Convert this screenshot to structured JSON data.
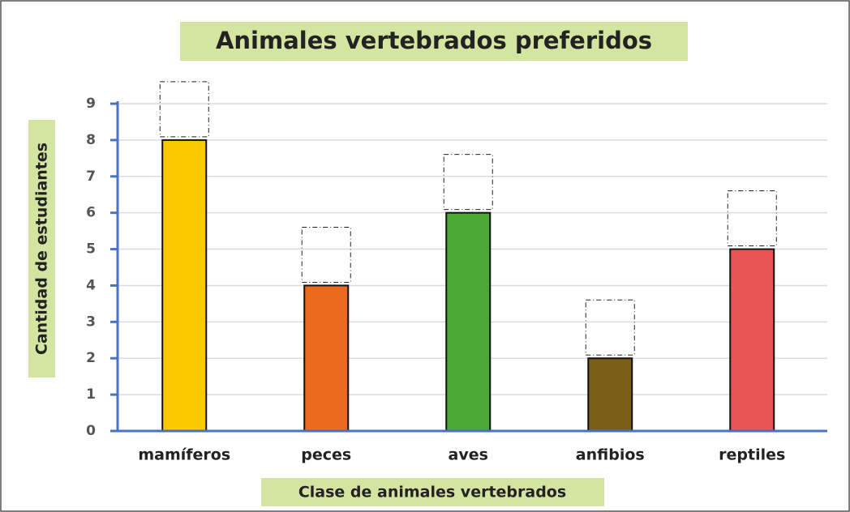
{
  "chart_data": {
    "type": "bar",
    "title": "Animales vertebrados preferidos",
    "x_label": "Clase de animales vertebrados",
    "y_label": "Cantidad de estudiantes",
    "categories": [
      "mamíferos",
      "peces",
      "aves",
      "anfibios",
      "reptiles"
    ],
    "values": [
      8,
      4,
      6,
      2,
      5
    ],
    "colors": [
      "#fcc800",
      "#ec6a1e",
      "#4aaa35",
      "#7b5f17",
      "#e95555"
    ],
    "ylim": [
      0,
      9
    ],
    "yticks": [
      0,
      1,
      2,
      3,
      4,
      5,
      6,
      7,
      8,
      9
    ],
    "grid": true
  }
}
